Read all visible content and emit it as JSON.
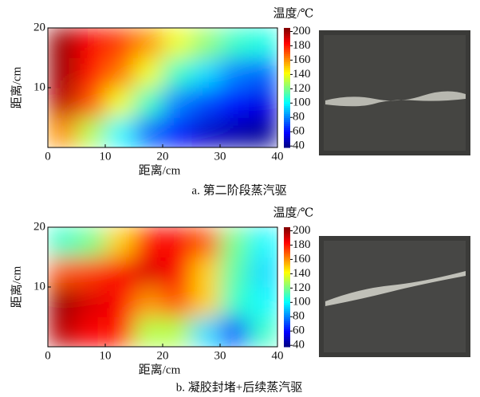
{
  "chart_data": [
    {
      "type": "heatmap",
      "caption": "a. 第二阶段蒸汽驱",
      "xlabel": "距离/cm",
      "ylabel": "距离/cm",
      "colorbar_label": "温度/℃",
      "colormap": "jet",
      "zlim": [
        38,
        205
      ],
      "xlim": [
        0,
        40
      ],
      "ylim": [
        0,
        20
      ],
      "xticks": [
        0,
        10,
        20,
        30,
        40
      ],
      "yticks": [
        10,
        20
      ],
      "cticks": [
        40,
        60,
        80,
        100,
        120,
        140,
        160,
        180,
        200
      ],
      "x": [
        2.5,
        7.5,
        12.5,
        17.5,
        22.5,
        27.5,
        32.5,
        37.5
      ],
      "y": [
        2.5,
        7.5,
        12.5,
        17.5
      ],
      "z": [
        [
          160,
          130,
          100,
          75,
          60,
          50,
          45,
          42
        ],
        [
          195,
          170,
          140,
          110,
          80,
          70,
          60,
          55
        ],
        [
          200,
          180,
          165,
          140,
          110,
          95,
          80,
          75
        ],
        [
          200,
          185,
          175,
          160,
          140,
          125,
          110,
          105
        ]
      ]
    },
    {
      "type": "heatmap",
      "caption": "b. 凝胶封堵+后续蒸汽驱",
      "xlabel": "距离/cm",
      "ylabel": "距离/cm",
      "colorbar_label": "温度/℃",
      "colormap": "jet",
      "zlim": [
        38,
        205
      ],
      "xlim": [
        0,
        40
      ],
      "ylim": [
        0,
        20
      ],
      "xticks": [
        0,
        10,
        20,
        30,
        40
      ],
      "yticks": [
        10,
        20
      ],
      "cticks": [
        40,
        60,
        80,
        100,
        120,
        140,
        160,
        180,
        200
      ],
      "x": [
        2.5,
        7.5,
        12.5,
        17.5,
        22.5,
        27.5,
        32.5,
        37.5
      ],
      "y": [
        2.5,
        7.5,
        12.5,
        17.5
      ],
      "z": [
        [
          195,
          185,
          180,
          130,
          130,
          95,
          70,
          110
        ],
        [
          200,
          190,
          185,
          160,
          170,
          150,
          110,
          100
        ],
        [
          170,
          175,
          185,
          190,
          185,
          150,
          115,
          95
        ],
        [
          110,
          120,
          150,
          180,
          185,
          170,
          120,
          100
        ]
      ]
    }
  ]
}
